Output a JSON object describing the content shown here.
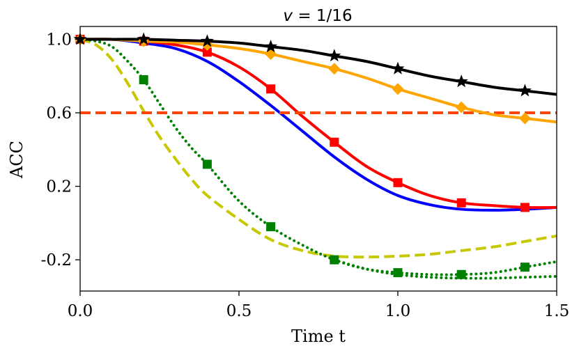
{
  "chart_data": {
    "type": "line",
    "title": "v = 1/16",
    "title_parts": {
      "variable": "v",
      "rest": " = 1/16"
    },
    "xlabel": "Time t",
    "ylabel": "ACC",
    "xlim": [
      0,
      1.5
    ],
    "ylim": [
      -0.37,
      1.07
    ],
    "xticks": [
      0.0,
      0.5,
      1.0,
      1.5
    ],
    "xtick_labels": [
      "0.0",
      "0.5",
      "1.0",
      "1.5"
    ],
    "yticks": [
      1.0,
      0.6,
      0.2,
      -0.2
    ],
    "ytick_labels": [
      "1.0",
      "0.6",
      "0.2",
      "-0.2"
    ],
    "grid": false,
    "series": [
      {
        "name": "black-stars",
        "color": "#000000",
        "dash": "solid",
        "marker": "star",
        "x": [
          0,
          0.1,
          0.2,
          0.3,
          0.4,
          0.5,
          0.6,
          0.7,
          0.8,
          0.9,
          1.0,
          1.1,
          1.2,
          1.3,
          1.4,
          1.5
        ],
        "y": [
          1.0,
          1.0,
          1.0,
          0.995,
          0.99,
          0.98,
          0.96,
          0.94,
          0.91,
          0.88,
          0.84,
          0.8,
          0.77,
          0.74,
          0.72,
          0.7
        ],
        "markers_x": [
          0,
          0.2,
          0.4,
          0.6,
          0.8,
          1.0,
          1.2,
          1.4
        ],
        "markers_y": [
          1.0,
          1.0,
          0.99,
          0.96,
          0.91,
          0.84,
          0.77,
          0.72
        ]
      },
      {
        "name": "orange-diamonds",
        "color": "#FFA500",
        "dash": "solid",
        "marker": "diamond",
        "x": [
          0,
          0.1,
          0.2,
          0.3,
          0.4,
          0.5,
          0.6,
          0.7,
          0.8,
          0.9,
          1.0,
          1.1,
          1.2,
          1.3,
          1.4,
          1.5
        ],
        "y": [
          1.0,
          1.0,
          0.99,
          0.985,
          0.97,
          0.95,
          0.92,
          0.88,
          0.84,
          0.79,
          0.73,
          0.68,
          0.63,
          0.59,
          0.57,
          0.55
        ],
        "markers_x": [
          0,
          0.2,
          0.4,
          0.6,
          0.8,
          1.0,
          1.2,
          1.4
        ],
        "markers_y": [
          1.0,
          0.99,
          0.97,
          0.92,
          0.84,
          0.73,
          0.63,
          0.57
        ]
      },
      {
        "name": "red-squares",
        "color": "#FF0000",
        "dash": "solid",
        "marker": "square",
        "x": [
          0,
          0.1,
          0.2,
          0.3,
          0.4,
          0.5,
          0.6,
          0.7,
          0.8,
          0.9,
          1.0,
          1.1,
          1.2,
          1.3,
          1.4,
          1.5
        ],
        "y": [
          1.0,
          1.0,
          0.99,
          0.97,
          0.93,
          0.85,
          0.73,
          0.58,
          0.44,
          0.31,
          0.22,
          0.15,
          0.11,
          0.095,
          0.085,
          0.085
        ],
        "markers_x": [
          0,
          0.2,
          0.4,
          0.6,
          0.8,
          1.0,
          1.2,
          1.4
        ],
        "markers_y": [
          1.0,
          0.99,
          0.93,
          0.73,
          0.44,
          0.22,
          0.11,
          0.085
        ]
      },
      {
        "name": "blue",
        "color": "#0000FF",
        "dash": "solid",
        "marker": "none",
        "x": [
          0,
          0.1,
          0.2,
          0.3,
          0.4,
          0.5,
          0.6,
          0.7,
          0.8,
          0.9,
          1.0,
          1.1,
          1.2,
          1.3,
          1.4,
          1.5
        ],
        "y": [
          1.0,
          1.0,
          0.98,
          0.95,
          0.88,
          0.77,
          0.64,
          0.5,
          0.36,
          0.24,
          0.15,
          0.1,
          0.075,
          0.07,
          0.075,
          0.085
        ]
      },
      {
        "name": "orangered-dashed",
        "color": "#FF4500",
        "dash": "dashed",
        "marker": "none",
        "x": [
          0,
          1.5
        ],
        "y": [
          0.6,
          0.6
        ]
      },
      {
        "name": "green-dotted-squares",
        "color": "#008000",
        "dash": "dotted",
        "marker": "square",
        "x": [
          0,
          0.05,
          0.1,
          0.15,
          0.2,
          0.25,
          0.3,
          0.35,
          0.4,
          0.5,
          0.6,
          0.7,
          0.8,
          0.9,
          1.0,
          1.1,
          1.2,
          1.3,
          1.4,
          1.5
        ],
        "y": [
          1.0,
          0.99,
          0.96,
          0.88,
          0.78,
          0.65,
          0.52,
          0.41,
          0.32,
          0.12,
          -0.02,
          -0.12,
          -0.2,
          -0.25,
          -0.27,
          -0.28,
          -0.28,
          -0.27,
          -0.24,
          -0.21
        ],
        "markers_x": [
          0,
          0.2,
          0.4,
          0.6,
          0.8,
          1.0,
          1.2,
          1.4
        ],
        "markers_y": [
          1.0,
          0.78,
          0.32,
          -0.02,
          -0.2,
          -0.27,
          -0.28,
          -0.24
        ]
      },
      {
        "name": "green-dotted-lower",
        "color": "#008000",
        "dash": "dotted",
        "marker": "none",
        "x": [
          0.8,
          0.9,
          1.0,
          1.1,
          1.2,
          1.3,
          1.4,
          1.5
        ],
        "y": [
          -0.2,
          -0.25,
          -0.28,
          -0.295,
          -0.3,
          -0.3,
          -0.295,
          -0.29
        ]
      },
      {
        "name": "olive-dashed",
        "color": "#C8C800",
        "dash": "dashed",
        "marker": "none",
        "x": [
          0,
          0.05,
          0.1,
          0.15,
          0.2,
          0.25,
          0.3,
          0.35,
          0.4,
          0.5,
          0.6,
          0.7,
          0.8,
          0.9,
          1.0,
          1.1,
          1.2,
          1.3,
          1.4,
          1.5
        ],
        "y": [
          1.0,
          0.97,
          0.89,
          0.76,
          0.61,
          0.47,
          0.35,
          0.24,
          0.15,
          0.02,
          -0.09,
          -0.15,
          -0.18,
          -0.185,
          -0.18,
          -0.17,
          -0.15,
          -0.13,
          -0.1,
          -0.07
        ]
      }
    ]
  }
}
